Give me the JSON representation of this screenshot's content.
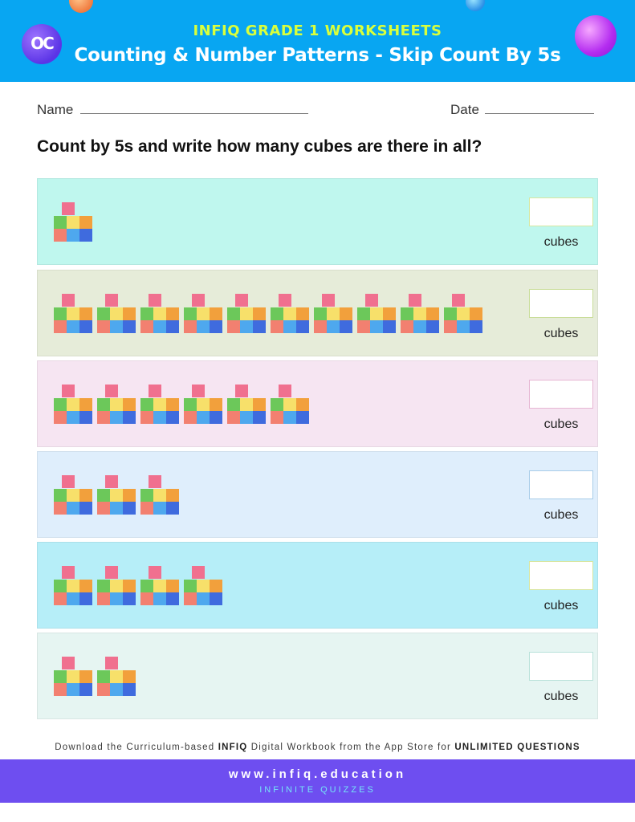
{
  "header": {
    "sup_title": "INFIQ GRADE 1 WORKSHEETS",
    "title": "Counting & Number Patterns - Skip Count By 5s",
    "logo_text": "OC",
    "logo_icon": "infiq-logo-icon"
  },
  "fields": {
    "name_label": "Name",
    "date_label": "Date"
  },
  "question": "Count by 5s and write how many cubes are there in all?",
  "rows": [
    {
      "groups": 1,
      "unit": "cubes",
      "answer": "",
      "bg": "#bff7ee",
      "box_border": "#d7e7a0"
    },
    {
      "groups": 10,
      "unit": "cubes",
      "answer": "",
      "bg": "#e6ecd9",
      "box_border": "#c9dd9a"
    },
    {
      "groups": 6,
      "unit": "cubes",
      "answer": "",
      "bg": "#f6e5f2",
      "box_border": "#e6b6d3"
    },
    {
      "groups": 3,
      "unit": "cubes",
      "answer": "",
      "bg": "#dfeefc",
      "box_border": "#a9cde9"
    },
    {
      "groups": 4,
      "unit": "cubes",
      "answer": "",
      "bg": "#b6eef8",
      "box_border": "#d9e6a0"
    },
    {
      "groups": 2,
      "unit": "cubes",
      "answer": "",
      "bg": "#e6f5f2",
      "box_border": "#b9e2da"
    }
  ],
  "cube_colors": {
    "top": "#f0708f",
    "middle": [
      "#6cc85a",
      "#f7e06a",
      "#f2a03c"
    ],
    "bottom": [
      "#f28070",
      "#4ea8ee",
      "#3f6bde"
    ]
  },
  "footer": {
    "note_prefix": "Download the Curriculum-based ",
    "note_brand": "INFIQ",
    "note_middle": " Digital Workbook from the App Store for ",
    "note_emphasis": "UNLIMITED QUESTIONS",
    "site": "www.infiq.education",
    "tagline": "INFINITE QUIZZES"
  }
}
